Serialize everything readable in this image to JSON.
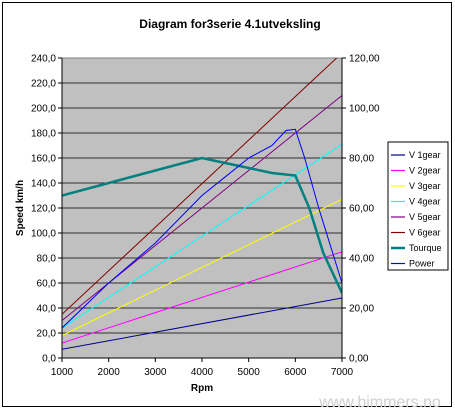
{
  "chart_data": {
    "type": "line",
    "title": "Diagram for3serie 4.1utveksling",
    "xlabel": "Rpm",
    "ylabel": "Speed km/h",
    "xlim": [
      1000,
      7000
    ],
    "ylim": [
      0,
      240
    ],
    "y2lim": [
      0,
      120
    ],
    "x_ticks": [
      "1000",
      "2000",
      "3000",
      "4000",
      "5000",
      "6000",
      "7000"
    ],
    "y_ticks": [
      "0,0",
      "20,0",
      "40,0",
      "60,0",
      "80,0",
      "100,0",
      "120,0",
      "140,0",
      "160,0",
      "180,0",
      "200,0",
      "220,0",
      "240,0"
    ],
    "y2_ticks": [
      "0,00",
      "20,00",
      "40,00",
      "60,00",
      "80,00",
      "100,00",
      "120,00"
    ],
    "grid": true,
    "legend_position": "right",
    "series": [
      {
        "name": "V 1gear",
        "axis": "left",
        "color": "#00008b",
        "x": [
          1000,
          7000
        ],
        "y": [
          7,
          48
        ]
      },
      {
        "name": "V 2gear",
        "axis": "left",
        "color": "#ff00ff",
        "x": [
          1000,
          7000
        ],
        "y": [
          12,
          85
        ]
      },
      {
        "name": "V 3gear",
        "axis": "left",
        "color": "#ffff00",
        "x": [
          1000,
          7000
        ],
        "y": [
          18,
          127
        ]
      },
      {
        "name": "V 4gear",
        "axis": "left",
        "color": "#00ffff",
        "x": [
          1000,
          7000
        ],
        "y": [
          24,
          171
        ]
      },
      {
        "name": "V 5gear",
        "axis": "left",
        "color": "#800080",
        "x": [
          1000,
          7000
        ],
        "y": [
          30,
          210
        ]
      },
      {
        "name": "V 6gear",
        "axis": "left",
        "color": "#800000",
        "x": [
          1000,
          7000
        ],
        "y": [
          35,
          244
        ]
      },
      {
        "name": "Tourque",
        "axis": "right",
        "color": "#008080",
        "x": [
          1000,
          2000,
          3000,
          4000,
          4500,
          5000,
          5500,
          6000,
          6300,
          6600,
          7000
        ],
        "y": [
          65,
          70,
          75,
          80,
          78,
          76,
          74,
          73,
          60,
          42,
          26
        ]
      },
      {
        "name": "Power",
        "axis": "left",
        "color": "#0000ff",
        "x": [
          1000,
          2000,
          3000,
          4000,
          4500,
          5000,
          5500,
          5800,
          6000,
          6200,
          6500,
          7000
        ],
        "y": [
          24,
          60,
          92,
          130,
          145,
          160,
          170,
          182,
          183,
          160,
          120,
          60
        ]
      }
    ]
  },
  "watermark": "www.bimmers.no"
}
